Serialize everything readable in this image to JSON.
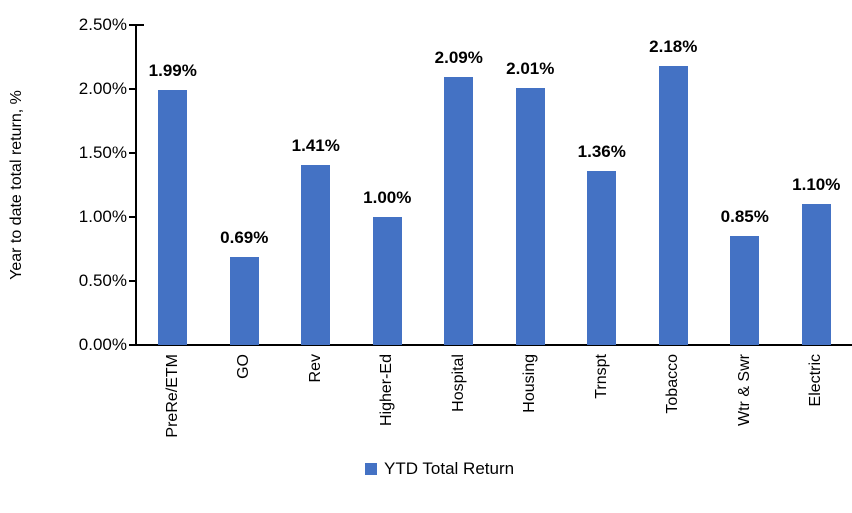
{
  "chart_data": {
    "type": "bar",
    "title": "",
    "ylabel": "Year to date total return, %",
    "xlabel": "",
    "categories": [
      "PreRe/ETM",
      "GO",
      "Rev",
      "Higher-Ed",
      "Hospital",
      "Housing",
      "Trnspt",
      "Tobacco",
      "Wtr & Swr",
      "Electric"
    ],
    "values": [
      1.99,
      0.69,
      1.41,
      1.0,
      2.09,
      2.01,
      1.36,
      2.18,
      0.85,
      1.1
    ],
    "value_labels": [
      "1.99%",
      "0.69%",
      "1.41%",
      "1.00%",
      "2.09%",
      "2.01%",
      "1.36%",
      "2.18%",
      "0.85%",
      "1.10%"
    ],
    "y_ticks": [
      0.0,
      0.5,
      1.0,
      1.5,
      2.0,
      2.5
    ],
    "y_tick_labels": [
      "0.00%",
      "0.50%",
      "1.00%",
      "1.50%",
      "2.00%",
      "2.50%"
    ],
    "ylim": [
      0,
      2.5
    ],
    "grid": false,
    "legend": [
      "YTD Total Return"
    ],
    "legend_position": "bottom",
    "bar_color": "#4472C4",
    "axis_color": "#000000",
    "text_color": "#000000"
  }
}
